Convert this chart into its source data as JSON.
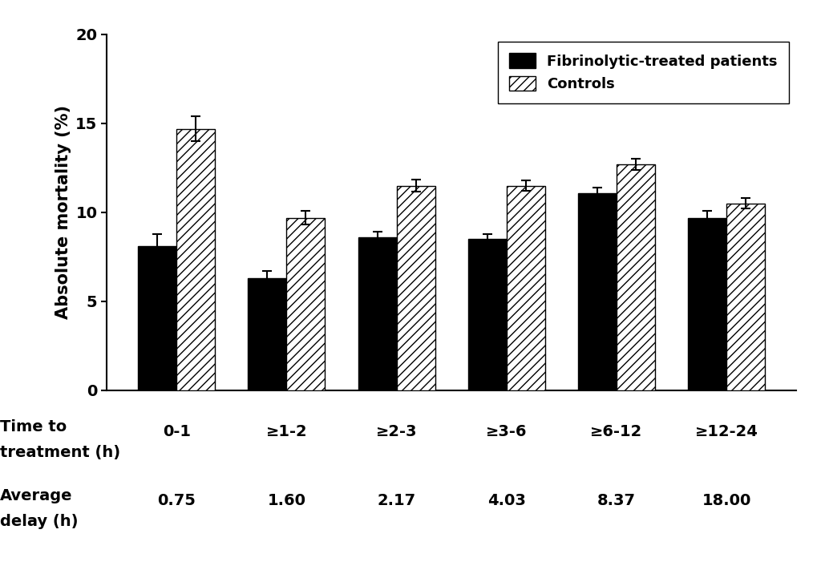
{
  "categories": [
    "0-1",
    "≥1-2",
    "≥2-3",
    "≥3-6",
    "≥6-12",
    "≥12-24"
  ],
  "avg_delays": [
    "0.75",
    "1.60",
    "2.17",
    "4.03",
    "8.37",
    "18.00"
  ],
  "fibrinolytic_values": [
    8.1,
    6.3,
    8.6,
    8.5,
    11.1,
    9.7
  ],
  "control_values": [
    14.7,
    9.7,
    11.5,
    11.5,
    12.7,
    10.5
  ],
  "fibrinolytic_errors": [
    0.7,
    0.4,
    0.3,
    0.3,
    0.3,
    0.4
  ],
  "control_errors": [
    0.7,
    0.4,
    0.35,
    0.3,
    0.3,
    0.3
  ],
  "ylabel": "Absolute mortality (%)",
  "ylim": [
    0,
    20
  ],
  "yticks": [
    0,
    5,
    10,
    15,
    20
  ],
  "bar_width": 0.35,
  "fibrinolytic_color": "#000000",
  "control_hatch": "///",
  "control_facecolor": "#ffffff",
  "control_edgecolor": "#000000",
  "legend_label_fibrinolytic": "Fibrinolytic-treated patients",
  "legend_label_control": "Controls",
  "time_label_line1": "Time to",
  "time_label_line2": "treatment (h)",
  "avg_label_line1": "Average",
  "avg_label_line2": "delay (h)",
  "background_color": "#ffffff",
  "fontsize_ticks": 14,
  "fontsize_ylabel": 15,
  "fontsize_legend": 13,
  "fontsize_xlabel": 14,
  "fontsize_avg": 14
}
